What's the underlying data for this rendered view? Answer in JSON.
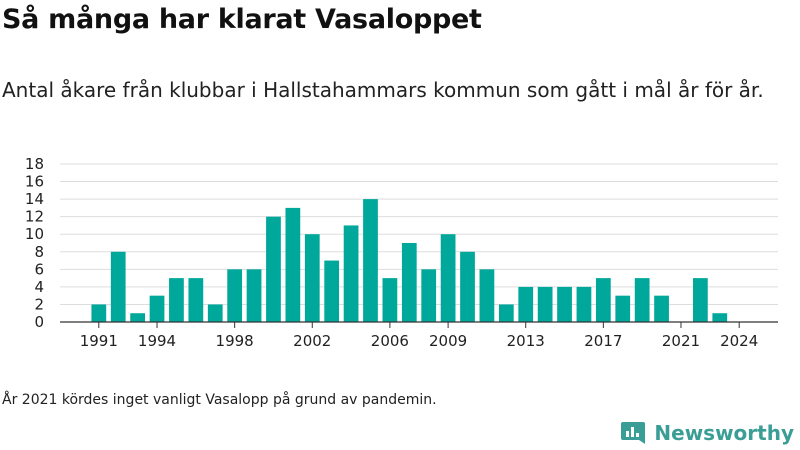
{
  "title": "Så många har klarat Vasaloppet",
  "subtitle": "Antal åkare från klubbar i Hallstahammars kommun som gått i mål år för år.",
  "footnote": "År 2021 kördes inget vanligt Vasalopp på grund av pandemin.",
  "brand": {
    "name": "Newsworthy",
    "icon": "bar-chart-icon"
  },
  "colors": {
    "bar": "#00a89b",
    "grid": "#dddddd",
    "axis": "#333333",
    "brand": "#3a9e96"
  },
  "chart_data": {
    "type": "bar",
    "title": "Så många har klarat Vasaloppet",
    "xlabel": "",
    "ylabel": "",
    "ylim": [
      0,
      18
    ],
    "y_ticks": [
      0,
      2,
      4,
      6,
      8,
      10,
      12,
      14,
      16,
      18
    ],
    "x_range": [
      1989,
      2026
    ],
    "x_ticks": [
      1991,
      1994,
      1998,
      2002,
      2006,
      2009,
      2013,
      2017,
      2021,
      2024
    ],
    "grid": true,
    "x": [
      1991,
      1992,
      1993,
      1994,
      1995,
      1996,
      1997,
      1998,
      1999,
      2000,
      2001,
      2002,
      2003,
      2004,
      2005,
      2006,
      2007,
      2008,
      2009,
      2010,
      2011,
      2012,
      2013,
      2014,
      2015,
      2016,
      2017,
      2018,
      2019,
      2020,
      2021,
      2022,
      2023,
      2024
    ],
    "values": [
      2,
      8,
      1,
      3,
      5,
      5,
      2,
      6,
      6,
      12,
      13,
      10,
      7,
      11,
      14,
      5,
      9,
      6,
      10,
      8,
      6,
      2,
      4,
      4,
      4,
      4,
      5,
      3,
      5,
      3,
      0,
      5,
      1,
      0
    ]
  }
}
